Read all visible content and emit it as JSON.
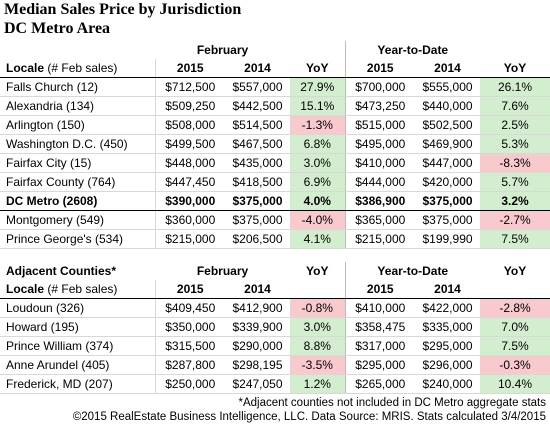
{
  "header": {
    "title": "Median Sales Price by Jurisdiction",
    "subtitle": "DC Metro Area"
  },
  "table1": {
    "group_headers": [
      "February",
      "Year-to-Date"
    ],
    "locale_header": "Locale",
    "locale_subheader": "(# Feb sales)",
    "column_headers": [
      "2015",
      "2014",
      "YoY",
      "2015",
      "2014",
      "YoY"
    ],
    "bold_row": 6,
    "rows": [
      [
        "Falls Church (12)",
        "$712,500",
        "$557,000",
        "27.9%",
        "$700,000",
        "$555,000",
        "26.1%"
      ],
      [
        "Alexandria (134)",
        "$509,250",
        "$442,500",
        "15.1%",
        "$473,250",
        "$440,000",
        "7.6%"
      ],
      [
        "Arlington (150)",
        "$508,000",
        "$514,500",
        "-1.3%",
        "$515,000",
        "$502,500",
        "2.5%"
      ],
      [
        "Washington D.C. (450)",
        "$499,500",
        "$467,500",
        "6.8%",
        "$495,000",
        "$469,900",
        "5.3%"
      ],
      [
        "Fairfax City (15)",
        "$448,000",
        "$435,000",
        "3.0%",
        "$410,000",
        "$447,000",
        "-8.3%"
      ],
      [
        "Fairfax County (764)",
        "$447,450",
        "$418,500",
        "6.9%",
        "$444,000",
        "$420,000",
        "5.7%"
      ],
      [
        "DC Metro (2608)",
        "$390,000",
        "$375,000",
        "4.0%",
        "$386,900",
        "$375,000",
        "3.2%"
      ],
      [
        "Montgomery (549)",
        "$360,000",
        "$375,000",
        "-4.0%",
        "$365,000",
        "$375,000",
        "-2.7%"
      ],
      [
        "Prince George's (534)",
        "$215,000",
        "$206,500",
        "4.1%",
        "$215,000",
        "$199,990",
        "7.5%"
      ]
    ]
  },
  "table2": {
    "section_title": "Adjacent Counties*",
    "group_headers": [
      "February",
      "YoY",
      "Year-to-Date",
      "YoY"
    ],
    "locale_header": "Locale",
    "locale_subheader": "(# Feb sales)",
    "column_headers": [
      "2015",
      "2014",
      "2015",
      "2014"
    ],
    "rows": [
      [
        "Loudoun (326)",
        "$409,450",
        "$412,900",
        "-0.8%",
        "$410,000",
        "$422,000",
        "-2.8%"
      ],
      [
        "Howard (195)",
        "$350,000",
        "$339,900",
        "3.0%",
        "$358,475",
        "$335,000",
        "7.0%"
      ],
      [
        "Prince William (374)",
        "$315,500",
        "$290,000",
        "8.8%",
        "$317,000",
        "$295,000",
        "7.5%"
      ],
      [
        "Anne Arundel (405)",
        "$287,800",
        "$298,195",
        "-3.5%",
        "$295,000",
        "$296,000",
        "-0.3%"
      ],
      [
        "Frederick, MD (207)",
        "$250,000",
        "$247,050",
        "1.2%",
        "$265,000",
        "$240,000",
        "10.4%"
      ]
    ]
  },
  "yoy_colors": {
    "positive": "#d3eecf",
    "negative": "#f8c9cd"
  },
  "notes": [
    "*Adjacent counties not included in DC Metro aggregate stats",
    "©2015 RealEstate Business Intelligence, LLC. Data Source: MRIS. Stats calculated 3/4/2015"
  ]
}
